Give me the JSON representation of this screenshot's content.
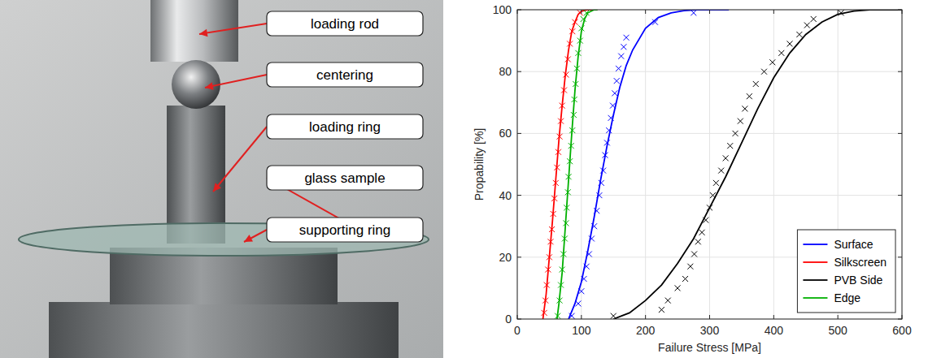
{
  "diagram": {
    "labels": [
      "loading rod",
      "centering",
      "loading ring",
      "glass sample",
      "supporting ring"
    ]
  },
  "chart_data": {
    "type": "line",
    "xlabel": "Failure Stress [MPa]",
    "ylabel": "Propability [%]",
    "xlim": [
      0,
      600
    ],
    "ylim": [
      0,
      100
    ],
    "xticks": [
      0,
      100,
      200,
      300,
      400,
      500,
      600
    ],
    "yticks": [
      0,
      20,
      40,
      60,
      80,
      100
    ],
    "grid": true,
    "legend": "lower right",
    "series": [
      {
        "name": "Surface",
        "color": "#0000ff",
        "type": "line",
        "x": [
          80,
          90,
          100,
          110,
          120,
          130,
          140,
          150,
          160,
          170,
          180,
          200,
          220,
          240,
          260,
          280,
          300,
          330
        ],
        "values": [
          0,
          5,
          12,
          22,
          33,
          45,
          56,
          66,
          75,
          82,
          87,
          94,
          97.5,
          99,
          99.7,
          100,
          100,
          100
        ]
      },
      {
        "name": "Silkscreen",
        "color": "#ff0000",
        "type": "line",
        "x": [
          40,
          45,
          50,
          55,
          60,
          65,
          70,
          75,
          80,
          85,
          90,
          95,
          100,
          110,
          125
        ],
        "values": [
          0,
          8,
          20,
          32,
          45,
          58,
          69,
          79,
          87,
          93,
          96,
          98.5,
          99.5,
          100,
          100
        ]
      },
      {
        "name": "PVB Side",
        "color": "#000000",
        "type": "line",
        "x": [
          150,
          175,
          200,
          225,
          250,
          275,
          300,
          325,
          350,
          375,
          400,
          425,
          450,
          475,
          500,
          525,
          550,
          600
        ],
        "values": [
          0,
          2,
          6,
          11,
          18,
          26,
          36,
          46,
          57,
          68,
          78,
          86,
          92,
          96,
          98.5,
          99.6,
          100,
          100
        ]
      },
      {
        "name": "Edge",
        "color": "#00b000",
        "type": "line",
        "x": [
          62,
          65,
          70,
          75,
          80,
          85,
          90,
          95,
          100,
          105,
          110,
          120,
          125
        ],
        "values": [
          0,
          5,
          15,
          30,
          45,
          60,
          74,
          85,
          93,
          97,
          99,
          100,
          100
        ]
      },
      {
        "color": "#0000ff",
        "type": "scatter",
        "marker": "x",
        "x": [
          85,
          95,
          100,
          104,
          108,
          112,
          116,
          120,
          124,
          128,
          131,
          134,
          137,
          140,
          143,
          146,
          149,
          152,
          155,
          158,
          162,
          166,
          170,
          215,
          275
        ],
        "values": [
          1,
          5,
          9,
          13,
          17,
          21,
          26,
          30,
          35,
          40,
          44,
          48,
          53,
          57,
          61,
          65,
          69,
          73,
          77,
          81,
          85,
          88,
          91,
          96,
          99
        ]
      },
      {
        "color": "#ff0000",
        "type": "scatter",
        "marker": "x",
        "x": [
          42,
          44,
          46,
          48,
          50,
          52,
          54,
          56,
          58,
          60,
          62,
          64,
          66,
          68,
          70,
          73,
          76,
          79,
          82,
          86,
          90,
          98
        ],
        "values": [
          2,
          6,
          11,
          16,
          20,
          25,
          29,
          34,
          39,
          44,
          49,
          54,
          59,
          64,
          69,
          74,
          79,
          84,
          89,
          93,
          96,
          99
        ]
      },
      {
        "color": "#000000",
        "type": "scatter",
        "marker": "x",
        "x": [
          150,
          225,
          235,
          250,
          262,
          270,
          276,
          282,
          288,
          294,
          300,
          305,
          310,
          318,
          325,
          332,
          340,
          348,
          355,
          362,
          372,
          385,
          398,
          412,
          425,
          440,
          452,
          462,
          505
        ],
        "values": [
          1,
          3,
          6,
          10,
          13,
          17,
          21,
          25,
          28,
          32,
          36,
          40,
          44,
          48,
          52,
          56,
          60,
          64,
          68,
          72,
          76,
          80,
          83,
          86,
          89,
          92,
          95,
          97,
          99
        ]
      },
      {
        "color": "#00b000",
        "type": "scatter",
        "marker": "x",
        "x": [
          63,
          66,
          68,
          70,
          72,
          74,
          76,
          77,
          79,
          80,
          82,
          84,
          86,
          88,
          89,
          91,
          93,
          95,
          98,
          100,
          103,
          108
        ],
        "values": [
          1,
          6,
          11,
          16,
          21,
          26,
          31,
          36,
          41,
          46,
          51,
          56,
          61,
          66,
          71,
          76,
          81,
          86,
          90,
          94,
          97,
          99
        ]
      }
    ]
  }
}
